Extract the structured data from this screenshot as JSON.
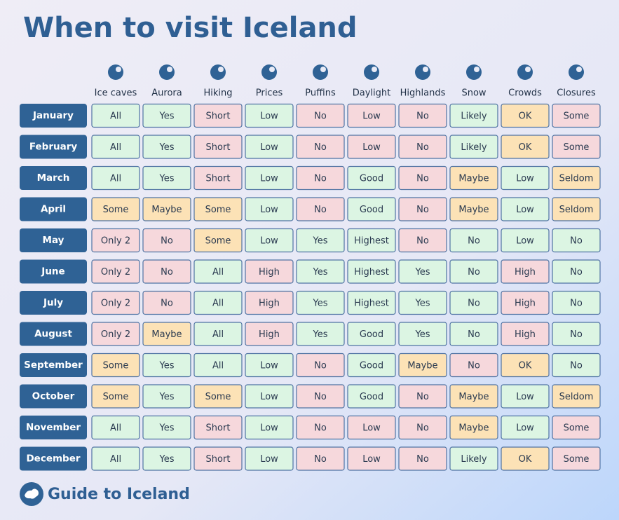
{
  "title": "When to visit Iceland",
  "columns": [
    "Ice caves",
    "Aurora",
    "Hiking",
    "Prices",
    "Puffins",
    "Daylight",
    "Highlands",
    "Snow",
    "Crowds",
    "Closures"
  ],
  "rows": [
    {
      "month": "January",
      "cells": [
        {
          "text": "All",
          "color": "#dcf5e3"
        },
        {
          "text": "Yes",
          "color": "#dcf5e3"
        },
        {
          "text": "Short",
          "color": "#f6d8dc"
        },
        {
          "text": "Low",
          "color": "#dcf5e3"
        },
        {
          "text": "No",
          "color": "#f6d8dc"
        },
        {
          "text": "Low",
          "color": "#f6d8dc"
        },
        {
          "text": "No",
          "color": "#f6d8dc"
        },
        {
          "text": "Likely",
          "color": "#dcf5e3"
        },
        {
          "text": "OK",
          "color": "#fce2b6"
        },
        {
          "text": "Some",
          "color": "#f6d8dc"
        }
      ]
    },
    {
      "month": "February",
      "cells": [
        {
          "text": "All",
          "color": "#dcf5e3"
        },
        {
          "text": "Yes",
          "color": "#dcf5e3"
        },
        {
          "text": "Short",
          "color": "#f6d8dc"
        },
        {
          "text": "Low",
          "color": "#dcf5e3"
        },
        {
          "text": "No",
          "color": "#f6d8dc"
        },
        {
          "text": "Low",
          "color": "#f6d8dc"
        },
        {
          "text": "No",
          "color": "#f6d8dc"
        },
        {
          "text": "Likely",
          "color": "#dcf5e3"
        },
        {
          "text": "OK",
          "color": "#fce2b6"
        },
        {
          "text": "Some",
          "color": "#f6d8dc"
        }
      ]
    },
    {
      "month": "March",
      "cells": [
        {
          "text": "All",
          "color": "#dcf5e3"
        },
        {
          "text": "Yes",
          "color": "#dcf5e3"
        },
        {
          "text": "Short",
          "color": "#f6d8dc"
        },
        {
          "text": "Low",
          "color": "#dcf5e3"
        },
        {
          "text": "No",
          "color": "#f6d8dc"
        },
        {
          "text": "Good",
          "color": "#dcf5e3"
        },
        {
          "text": "No",
          "color": "#f6d8dc"
        },
        {
          "text": "Maybe",
          "color": "#fce2b6"
        },
        {
          "text": "Low",
          "color": "#dcf5e3"
        },
        {
          "text": "Seldom",
          "color": "#fce2b6"
        }
      ]
    },
    {
      "month": "April",
      "cells": [
        {
          "text": "Some",
          "color": "#fce2b6"
        },
        {
          "text": "Maybe",
          "color": "#fce2b6"
        },
        {
          "text": "Some",
          "color": "#fce2b6"
        },
        {
          "text": "Low",
          "color": "#dcf5e3"
        },
        {
          "text": "No",
          "color": "#f6d8dc"
        },
        {
          "text": "Good",
          "color": "#dcf5e3"
        },
        {
          "text": "No",
          "color": "#f6d8dc"
        },
        {
          "text": "Maybe",
          "color": "#fce2b6"
        },
        {
          "text": "Low",
          "color": "#dcf5e3"
        },
        {
          "text": "Seldom",
          "color": "#fce2b6"
        }
      ]
    },
    {
      "month": "May",
      "cells": [
        {
          "text": "Only 2",
          "color": "#f6d8dc"
        },
        {
          "text": "No",
          "color": "#f6d8dc"
        },
        {
          "text": "Some",
          "color": "#fce2b6"
        },
        {
          "text": "Low",
          "color": "#dcf5e3"
        },
        {
          "text": "Yes",
          "color": "#dcf5e3"
        },
        {
          "text": "Highest",
          "color": "#dcf5e3"
        },
        {
          "text": "No",
          "color": "#f6d8dc"
        },
        {
          "text": "No",
          "color": "#dcf5e3"
        },
        {
          "text": "Low",
          "color": "#dcf5e3"
        },
        {
          "text": "No",
          "color": "#dcf5e3"
        }
      ]
    },
    {
      "month": "June",
      "cells": [
        {
          "text": "Only 2",
          "color": "#f6d8dc"
        },
        {
          "text": "No",
          "color": "#f6d8dc"
        },
        {
          "text": "All",
          "color": "#dcf5e3"
        },
        {
          "text": "High",
          "color": "#f6d8dc"
        },
        {
          "text": "Yes",
          "color": "#dcf5e3"
        },
        {
          "text": "Highest",
          "color": "#dcf5e3"
        },
        {
          "text": "Yes",
          "color": "#dcf5e3"
        },
        {
          "text": "No",
          "color": "#dcf5e3"
        },
        {
          "text": "High",
          "color": "#f6d8dc"
        },
        {
          "text": "No",
          "color": "#dcf5e3"
        }
      ]
    },
    {
      "month": "July",
      "cells": [
        {
          "text": "Only 2",
          "color": "#f6d8dc"
        },
        {
          "text": "No",
          "color": "#f6d8dc"
        },
        {
          "text": "All",
          "color": "#dcf5e3"
        },
        {
          "text": "High",
          "color": "#f6d8dc"
        },
        {
          "text": "Yes",
          "color": "#dcf5e3"
        },
        {
          "text": "Highest",
          "color": "#dcf5e3"
        },
        {
          "text": "Yes",
          "color": "#dcf5e3"
        },
        {
          "text": "No",
          "color": "#dcf5e3"
        },
        {
          "text": "High",
          "color": "#f6d8dc"
        },
        {
          "text": "No",
          "color": "#dcf5e3"
        }
      ]
    },
    {
      "month": "August",
      "cells": [
        {
          "text": "Only 2",
          "color": "#f6d8dc"
        },
        {
          "text": "Maybe",
          "color": "#fce2b6"
        },
        {
          "text": "All",
          "color": "#dcf5e3"
        },
        {
          "text": "High",
          "color": "#f6d8dc"
        },
        {
          "text": "Yes",
          "color": "#dcf5e3"
        },
        {
          "text": "Good",
          "color": "#dcf5e3"
        },
        {
          "text": "Yes",
          "color": "#dcf5e3"
        },
        {
          "text": "No",
          "color": "#dcf5e3"
        },
        {
          "text": "High",
          "color": "#f6d8dc"
        },
        {
          "text": "No",
          "color": "#dcf5e3"
        }
      ]
    },
    {
      "month": "September",
      "cells": [
        {
          "text": "Some",
          "color": "#fce2b6"
        },
        {
          "text": "Yes",
          "color": "#dcf5e3"
        },
        {
          "text": "All",
          "color": "#dcf5e3"
        },
        {
          "text": "Low",
          "color": "#dcf5e3"
        },
        {
          "text": "No",
          "color": "#f6d8dc"
        },
        {
          "text": "Good",
          "color": "#dcf5e3"
        },
        {
          "text": "Maybe",
          "color": "#fce2b6"
        },
        {
          "text": "No",
          "color": "#f6d8dc"
        },
        {
          "text": "OK",
          "color": "#fce2b6"
        },
        {
          "text": "No",
          "color": "#dcf5e3"
        }
      ]
    },
    {
      "month": "October",
      "cells": [
        {
          "text": "Some",
          "color": "#fce2b6"
        },
        {
          "text": "Yes",
          "color": "#dcf5e3"
        },
        {
          "text": "Some",
          "color": "#fce2b6"
        },
        {
          "text": "Low",
          "color": "#dcf5e3"
        },
        {
          "text": "No",
          "color": "#f6d8dc"
        },
        {
          "text": "Good",
          "color": "#dcf5e3"
        },
        {
          "text": "No",
          "color": "#f6d8dc"
        },
        {
          "text": "Maybe",
          "color": "#fce2b6"
        },
        {
          "text": "Low",
          "color": "#dcf5e3"
        },
        {
          "text": "Seldom",
          "color": "#fce2b6"
        }
      ]
    },
    {
      "month": "November",
      "cells": [
        {
          "text": "All",
          "color": "#dcf5e3"
        },
        {
          "text": "Yes",
          "color": "#dcf5e3"
        },
        {
          "text": "Short",
          "color": "#f6d8dc"
        },
        {
          "text": "Low",
          "color": "#dcf5e3"
        },
        {
          "text": "No",
          "color": "#f6d8dc"
        },
        {
          "text": "Low",
          "color": "#f6d8dc"
        },
        {
          "text": "No",
          "color": "#f6d8dc"
        },
        {
          "text": "Maybe",
          "color": "#fce2b6"
        },
        {
          "text": "Low",
          "color": "#dcf5e3"
        },
        {
          "text": "Some",
          "color": "#f6d8dc"
        }
      ]
    },
    {
      "month": "December",
      "cells": [
        {
          "text": "All",
          "color": "#dcf5e3"
        },
        {
          "text": "Yes",
          "color": "#dcf5e3"
        },
        {
          "text": "Short",
          "color": "#f6d8dc"
        },
        {
          "text": "Low",
          "color": "#dcf5e3"
        },
        {
          "text": "No",
          "color": "#f6d8dc"
        },
        {
          "text": "Low",
          "color": "#f6d8dc"
        },
        {
          "text": "No",
          "color": "#f6d8dc"
        },
        {
          "text": "Likely",
          "color": "#dcf5e3"
        },
        {
          "text": "OK",
          "color": "#fce2b6"
        },
        {
          "text": "Some",
          "color": "#f6d8dc"
        }
      ]
    }
  ],
  "footer": {
    "brand": "Guide to Iceland"
  }
}
